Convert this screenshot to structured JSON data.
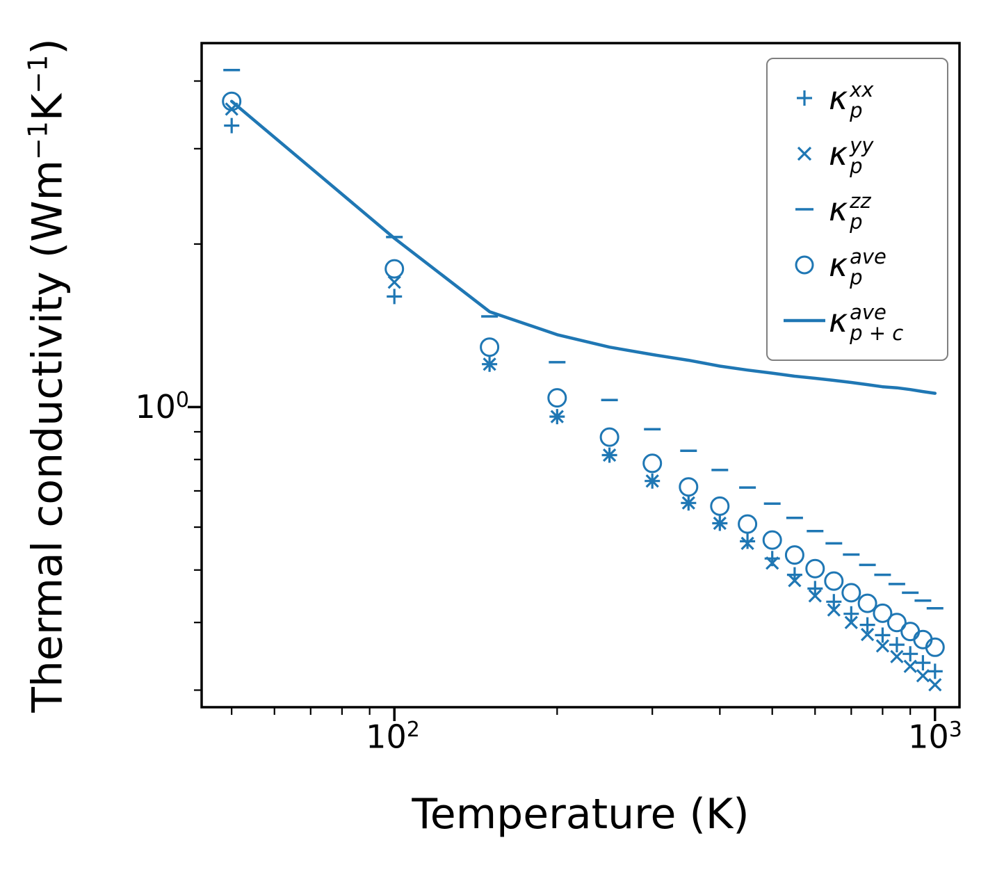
{
  "chart_data": {
    "type": "scatter",
    "title": "",
    "xlabel": "Temperature (K)",
    "ylabel": "Thermal conductivity (Wm⁻¹K⁻¹)",
    "xscale": "log",
    "yscale": "log",
    "xlim": [
      44,
      1110
    ],
    "ylim": [
      0.279,
      4.7
    ],
    "grid": false,
    "legend_position": "upper right",
    "color": "#1f77b4",
    "x_major_ticks": [
      100,
      1000
    ],
    "x_minor_ticks": [
      50,
      60,
      70,
      80,
      90,
      200,
      300,
      400,
      500,
      600,
      700,
      800,
      900
    ],
    "y_major_ticks": [
      1
    ],
    "y_minor_ticks": [
      0.3,
      0.4,
      0.5,
      0.6,
      0.7,
      0.8,
      0.9,
      2,
      3,
      4
    ],
    "x": [
      50,
      100,
      150,
      200,
      250,
      300,
      350,
      400,
      450,
      500,
      550,
      600,
      650,
      700,
      750,
      800,
      850,
      900,
      950,
      1000
    ],
    "series": [
      {
        "name": "kappa_p_xx",
        "label": "κ_p^{xx}",
        "marker": "plus",
        "values": [
          3.31,
          1.6,
          1.2,
          0.96,
          0.815,
          0.73,
          0.665,
          0.61,
          0.565,
          0.525,
          0.49,
          0.462,
          0.437,
          0.415,
          0.396,
          0.379,
          0.364,
          0.35,
          0.337,
          0.325
        ]
      },
      {
        "name": "kappa_p_yy",
        "label": "κ_p^{yy}",
        "marker": "x",
        "values": [
          3.55,
          1.7,
          1.2,
          0.96,
          0.815,
          0.73,
          0.665,
          0.61,
          0.56,
          0.515,
          0.478,
          0.448,
          0.422,
          0.4,
          0.38,
          0.362,
          0.346,
          0.332,
          0.319,
          0.307
        ]
      },
      {
        "name": "kappa_p_zz",
        "label": "κ_p^{zz}",
        "marker": "dash",
        "values": [
          4.19,
          2.06,
          1.47,
          1.21,
          1.03,
          0.91,
          0.83,
          0.765,
          0.71,
          0.663,
          0.624,
          0.59,
          0.56,
          0.534,
          0.511,
          0.49,
          0.471,
          0.454,
          0.439,
          0.425
        ]
      },
      {
        "name": "kappa_p_ave",
        "label": "κ_p^{ave}",
        "marker": "circle",
        "values": [
          3.67,
          1.8,
          1.29,
          1.04,
          0.88,
          0.787,
          0.712,
          0.656,
          0.608,
          0.568,
          0.533,
          0.503,
          0.477,
          0.454,
          0.434,
          0.416,
          0.4,
          0.385,
          0.372,
          0.36
        ]
      },
      {
        "name": "kappa_p_plus_c_ave",
        "label": "κ_{p+c}^{ave}",
        "marker": "line",
        "values": [
          3.67,
          2.05,
          1.5,
          1.36,
          1.29,
          1.25,
          1.22,
          1.19,
          1.17,
          1.155,
          1.14,
          1.13,
          1.12,
          1.11,
          1.1,
          1.09,
          1.085,
          1.077,
          1.068,
          1.06
        ]
      }
    ]
  },
  "axes": {
    "x": {
      "label": "Temperature (K)",
      "tick_labels": [
        {
          "base": "10",
          "exp": "2"
        },
        {
          "base": "10",
          "exp": "3"
        }
      ]
    },
    "y": {
      "label_parts": [
        "Thermal conductivity (Wm",
        "−1",
        "K",
        "−1",
        ")"
      ],
      "tick_labels": [
        {
          "base": "10",
          "exp": "0"
        }
      ]
    }
  },
  "legend": {
    "items": [
      {
        "marker": "plus-marker-icon",
        "kappa": "κ",
        "sup": "xx",
        "sub": "p"
      },
      {
        "marker": "x-marker-icon",
        "kappa": "κ",
        "sup": "yy",
        "sub": "p"
      },
      {
        "marker": "dash-marker-icon",
        "kappa": "κ",
        "sup": "zz",
        "sub": "p"
      },
      {
        "marker": "circle-marker-icon",
        "kappa": "κ",
        "sup": "ave",
        "sub": "p"
      },
      {
        "marker": "line-marker-icon",
        "kappa": "κ",
        "sup": "ave",
        "sub": "p + c"
      }
    ]
  }
}
